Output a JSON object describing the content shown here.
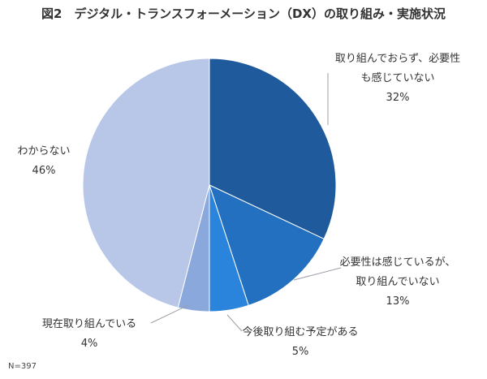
{
  "chart_data": {
    "type": "pie",
    "title": "図2　デジタル・トランスフォーメーション（DX）の取り組み・実施状況",
    "note": "N=397",
    "start": "12 o'clock, clockwise",
    "slices": [
      {
        "label_lines": [
          "取り組んでおらず、必要性",
          "も感じていない"
        ],
        "value": 32,
        "value_label": "32%",
        "color": "#1e5a9c"
      },
      {
        "label_lines": [
          "必要性は感じているが、",
          "取り組んでいない"
        ],
        "value": 13,
        "value_label": "13%",
        "color": "#2270bf"
      },
      {
        "label_lines": [
          "今後取り組む予定がある"
        ],
        "value": 5,
        "value_label": "5%",
        "color": "#2b84db"
      },
      {
        "label_lines": [
          "現在取り組んでいる"
        ],
        "value": 4,
        "value_label": "4%",
        "color": "#8aa8dc"
      },
      {
        "label_lines": [
          "わからない"
        ],
        "value": 46,
        "value_label": "46%",
        "color": "#b8c7e8"
      }
    ]
  }
}
